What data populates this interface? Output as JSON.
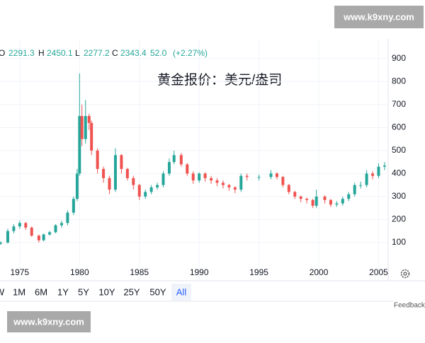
{
  "chart_data": {
    "type": "candlestick",
    "title": "黄金报价：美元/盎司",
    "x": [
      1973.4,
      1974,
      1974.5,
      1975,
      1975.5,
      1976,
      1976.6,
      1977,
      1977.5,
      1978,
      1978.5,
      1979,
      1979.5,
      1979.8,
      1980,
      1980.2,
      1980.5,
      1980.8,
      1981,
      1981.5,
      1982,
      1982.5,
      1983,
      1983.5,
      1984,
      1984.5,
      1985,
      1985.5,
      1986,
      1986.5,
      1987,
      1987.5,
      1987.9,
      1988.5,
      1989,
      1989.5,
      1990,
      1990.5,
      1991,
      1991.5,
      1992,
      1992.5,
      1993,
      1993.5,
      1994,
      1995,
      1996,
      1996.5,
      1997,
      1997.5,
      1998,
      1998.5,
      1999,
      1999.5,
      1999.8,
      2000.5,
      2001,
      2001.5,
      2002,
      2002.5,
      2003,
      2003.5,
      2004,
      2004.5,
      2005,
      2005.5
    ],
    "open": [
      95,
      100,
      150,
      170,
      185,
      165,
      130,
      110,
      135,
      145,
      175,
      185,
      230,
      290,
      400,
      650,
      550,
      650,
      620,
      500,
      420,
      380,
      330,
      480,
      420,
      380,
      350,
      300,
      320,
      340,
      350,
      400,
      450,
      480,
      440,
      400,
      370,
      400,
      380,
      370,
      360,
      350,
      340,
      330,
      390,
      385,
      385,
      400,
      385,
      350,
      320,
      300,
      290,
      285,
      260,
      300,
      285,
      265,
      270,
      290,
      310,
      350,
      350,
      400,
      390,
      430
    ],
    "high": [
      105,
      160,
      180,
      195,
      190,
      170,
      135,
      140,
      150,
      180,
      195,
      240,
      300,
      420,
      835,
      700,
      720,
      660,
      630,
      510,
      430,
      390,
      510,
      485,
      425,
      390,
      355,
      330,
      350,
      360,
      410,
      465,
      500,
      490,
      445,
      410,
      405,
      405,
      390,
      380,
      370,
      355,
      345,
      400,
      400,
      395,
      415,
      405,
      390,
      355,
      325,
      305,
      295,
      290,
      330,
      305,
      290,
      280,
      300,
      320,
      360,
      365,
      415,
      410,
      445,
      450
    ],
    "low": [
      90,
      95,
      140,
      160,
      155,
      125,
      100,
      105,
      130,
      140,
      165,
      175,
      220,
      280,
      390,
      520,
      530,
      590,
      480,
      400,
      360,
      310,
      320,
      400,
      370,
      330,
      285,
      290,
      310,
      330,
      340,
      390,
      440,
      430,
      390,
      355,
      360,
      365,
      355,
      345,
      335,
      325,
      315,
      320,
      370,
      370,
      375,
      375,
      340,
      310,
      290,
      275,
      270,
      250,
      250,
      270,
      255,
      255,
      260,
      280,
      300,
      335,
      340,
      375,
      380,
      415
    ],
    "close": [
      100,
      150,
      170,
      185,
      165,
      130,
      110,
      135,
      145,
      175,
      185,
      230,
      290,
      400,
      650,
      550,
      650,
      620,
      500,
      420,
      380,
      330,
      480,
      420,
      380,
      350,
      300,
      320,
      340,
      350,
      400,
      450,
      480,
      440,
      400,
      370,
      400,
      380,
      370,
      360,
      350,
      340,
      330,
      390,
      385,
      385,
      400,
      385,
      350,
      320,
      300,
      290,
      285,
      260,
      300,
      285,
      265,
      270,
      290,
      310,
      350,
      350,
      400,
      390,
      430,
      435
    ],
    "up_color": "#26a69a",
    "down_color": "#ef5350",
    "xlim": [
      1973.35,
      2005.8
    ],
    "xticks": [
      1975,
      1980,
      1985,
      1990,
      1995,
      2000,
      2005
    ],
    "ylim": [
      -60,
      970
    ],
    "yticks": [
      100,
      200,
      300,
      400,
      500,
      600,
      700,
      800,
      900
    ],
    "grid": true
  },
  "header": {
    "items": [
      "O",
      "2291.3",
      "H",
      "2450.1",
      "L",
      "2277.2",
      "C",
      "2343.4",
      "52.0",
      "(+2.27%)"
    ]
  },
  "toolbar": {
    "buttons": [
      "W",
      "1M",
      "6M",
      "1Y",
      "5Y",
      "10Y",
      "25Y",
      "50Y",
      "All"
    ],
    "active": 8,
    "feedback": "Feedback"
  },
  "watermarks": [
    "www.k9xny.com",
    "www.k9xny.com"
  ]
}
